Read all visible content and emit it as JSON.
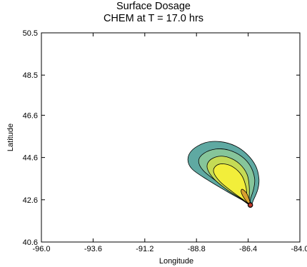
{
  "chart_data": {
    "type": "contour",
    "title": "Surface Dosage",
    "subtitle": "CHEM at T = 17.0 hrs",
    "xlabel": "Longitude",
    "ylabel": "Latitude",
    "xlim": [
      -96.0,
      -84.0
    ],
    "ylim": [
      40.6,
      50.5
    ],
    "x_ticks": [
      "-96.0",
      "-93.6",
      "-91.2",
      "-88.8",
      "-86.4",
      "-84.0"
    ],
    "y_ticks": [
      "40.6",
      "42.6",
      "44.6",
      "46.6",
      "48.5",
      "50.5"
    ],
    "grid": false,
    "legend": "none",
    "source_point": {
      "lon": -86.3,
      "lat": 42.35
    },
    "levels": [
      {
        "level": 1,
        "color": "#5fa9a2",
        "outline": [
          [
            -86.3,
            42.35
          ],
          [
            -86.15,
            42.6
          ],
          [
            -85.95,
            43.1
          ],
          [
            -85.9,
            43.6
          ],
          [
            -86.05,
            44.2
          ],
          [
            -86.45,
            44.75
          ],
          [
            -87.0,
            45.15
          ],
          [
            -87.7,
            45.35
          ],
          [
            -88.4,
            45.3
          ],
          [
            -89.0,
            44.95
          ],
          [
            -89.2,
            44.5
          ],
          [
            -89.0,
            44.05
          ],
          [
            -88.3,
            43.55
          ],
          [
            -87.4,
            43.0
          ],
          [
            -86.7,
            42.6
          ]
        ]
      },
      {
        "level": 2,
        "color": "#86c59a",
        "outline": [
          [
            -86.3,
            42.35
          ],
          [
            -86.3,
            42.6
          ],
          [
            -86.15,
            43.1
          ],
          [
            -86.1,
            43.6
          ],
          [
            -86.3,
            44.2
          ],
          [
            -86.7,
            44.65
          ],
          [
            -87.3,
            44.95
          ],
          [
            -87.9,
            45.0
          ],
          [
            -88.45,
            44.8
          ],
          [
            -88.7,
            44.45
          ],
          [
            -88.5,
            44.0
          ],
          [
            -87.9,
            43.5
          ],
          [
            -87.1,
            42.95
          ],
          [
            -86.6,
            42.55
          ]
        ]
      },
      {
        "level": 3,
        "color": "#c5db55",
        "outline": [
          [
            -86.3,
            42.35
          ],
          [
            -86.35,
            42.65
          ],
          [
            -86.35,
            43.2
          ],
          [
            -86.45,
            43.8
          ],
          [
            -86.8,
            44.3
          ],
          [
            -87.3,
            44.6
          ],
          [
            -87.8,
            44.65
          ],
          [
            -88.2,
            44.45
          ],
          [
            -88.3,
            44.1
          ],
          [
            -88.0,
            43.6
          ],
          [
            -87.35,
            43.05
          ],
          [
            -86.65,
            42.6
          ]
        ]
      },
      {
        "level": 4,
        "color": "#f2ee3a",
        "outline": [
          [
            -86.3,
            42.35
          ],
          [
            -86.45,
            42.7
          ],
          [
            -86.5,
            43.2
          ],
          [
            -86.7,
            43.75
          ],
          [
            -87.1,
            44.15
          ],
          [
            -87.55,
            44.3
          ],
          [
            -87.9,
            44.2
          ],
          [
            -88.0,
            43.9
          ],
          [
            -87.7,
            43.45
          ],
          [
            -87.1,
            42.95
          ],
          [
            -86.6,
            42.58
          ]
        ]
      },
      {
        "level": 5,
        "color": "#d9a030",
        "outline": [
          [
            -86.3,
            42.35
          ],
          [
            -86.36,
            42.65
          ],
          [
            -86.5,
            42.95
          ],
          [
            -86.68,
            43.1
          ],
          [
            -86.72,
            42.95
          ],
          [
            -86.55,
            42.62
          ]
        ]
      }
    ]
  }
}
